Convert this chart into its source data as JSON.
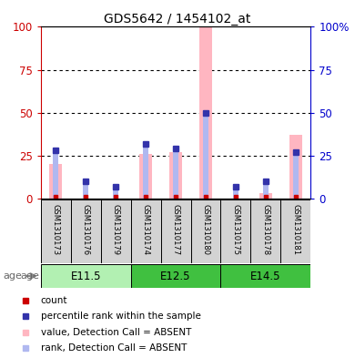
{
  "title": "GDS5642 / 1454102_at",
  "samples": [
    "GSM1310173",
    "GSM1310176",
    "GSM1310179",
    "GSM1310174",
    "GSM1310177",
    "GSM1310180",
    "GSM1310175",
    "GSM1310178",
    "GSM1310181"
  ],
  "age_groups": [
    {
      "label": "E11.5",
      "start": 0,
      "end": 3,
      "color": "#b2f0b2"
    },
    {
      "label": "E12.5",
      "start": 3,
      "end": 6,
      "color": "#40c040"
    },
    {
      "label": "E14.5",
      "start": 6,
      "end": 9,
      "color": "#40c040"
    }
  ],
  "pink_bars": [
    20,
    0,
    0,
    26,
    27,
    100,
    0,
    3,
    37
  ],
  "light_blue_bars": [
    28,
    10,
    7,
    32,
    29,
    50,
    7,
    10,
    27
  ],
  "red_sq_vals": [
    1,
    1,
    1,
    1,
    1,
    1,
    1,
    1,
    1
  ],
  "ylim": [
    0,
    100
  ],
  "yticks": [
    0,
    25,
    50,
    75,
    100
  ],
  "left_yaxis_color": "#cc0000",
  "right_yaxis_color": "#0000cc",
  "pink_bar_color": "#ffb6c1",
  "light_blue_bar_color": "#b0b8f0",
  "red_sq_color": "#cc0000",
  "blue_sq_color": "#3333aa",
  "sample_box_color": "#d3d3d3",
  "legend_items": [
    {
      "color": "#cc0000",
      "label": "count"
    },
    {
      "color": "#3333aa",
      "label": "percentile rank within the sample"
    },
    {
      "color": "#ffb6c1",
      "label": "value, Detection Call = ABSENT"
    },
    {
      "color": "#b0b8f0",
      "label": "rank, Detection Call = ABSENT"
    }
  ]
}
